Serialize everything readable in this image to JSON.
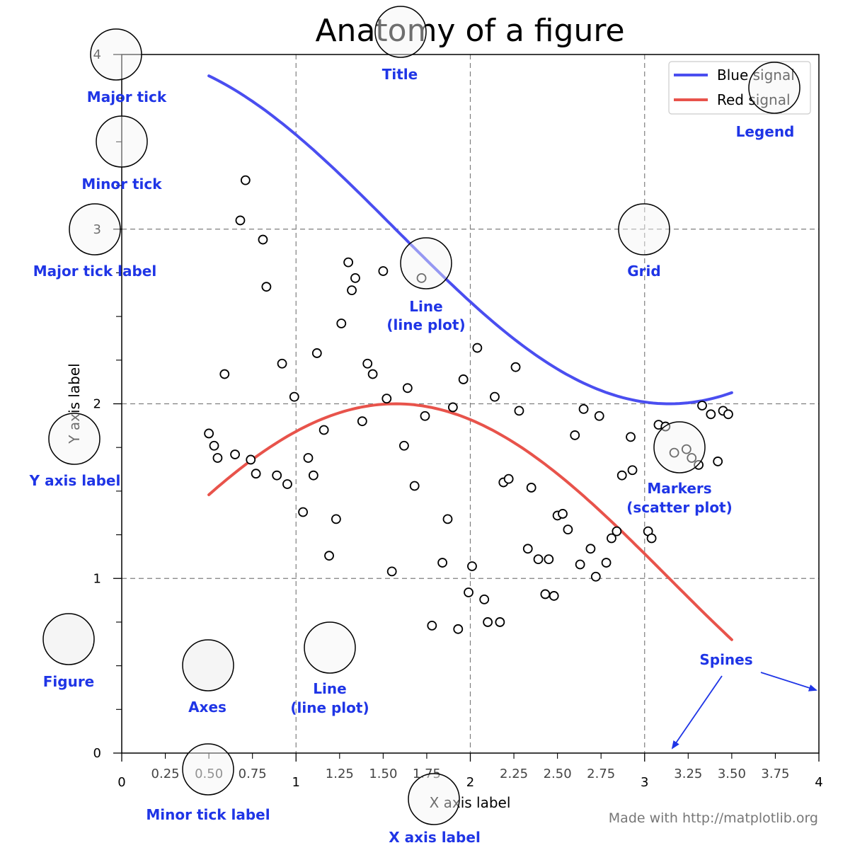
{
  "chart_data": {
    "type": "scatter",
    "title": "Anatomy of a figure",
    "xlabel": "X axis label",
    "ylabel": "Y axis label",
    "xlim": [
      0,
      4
    ],
    "ylim": [
      0,
      4
    ],
    "grid": true,
    "legend_position": "top-right",
    "x_major_ticks": [
      {
        "value": 0,
        "label": "0"
      },
      {
        "value": 1,
        "label": "1"
      },
      {
        "value": 2,
        "label": "2"
      },
      {
        "value": 3,
        "label": "3"
      },
      {
        "value": 4,
        "label": "4"
      }
    ],
    "x_minor_ticks": [
      {
        "value": 0.25,
        "label": "0.25"
      },
      {
        "value": 0.5,
        "label": "0.50"
      },
      {
        "value": 0.75,
        "label": "0.75"
      },
      {
        "value": 1.25,
        "label": "1.25"
      },
      {
        "value": 1.5,
        "label": "1.50"
      },
      {
        "value": 1.75,
        "label": "1.75"
      },
      {
        "value": 2.25,
        "label": "2.25"
      },
      {
        "value": 2.5,
        "label": "2.50"
      },
      {
        "value": 2.75,
        "label": "2.75"
      },
      {
        "value": 3.25,
        "label": "3.25"
      },
      {
        "value": 3.5,
        "label": "3.50"
      },
      {
        "value": 3.75,
        "label": "3.75"
      }
    ],
    "y_major_ticks": [
      {
        "value": 0,
        "label": "0"
      },
      {
        "value": 1,
        "label": "1"
      },
      {
        "value": 2,
        "label": "2"
      },
      {
        "value": 3,
        "label": "3"
      },
      {
        "value": 4,
        "label": "4"
      }
    ],
    "y_minor_ticks": [
      0.25,
      0.5,
      0.75,
      1.25,
      1.5,
      1.75,
      2.25,
      2.5,
      2.75,
      3.25,
      3.5,
      3.75
    ],
    "series": [
      {
        "name": "Blue signal",
        "kind": "line",
        "color": "#4a4ef0",
        "formula": "3 + cos(x)",
        "x_range": [
          0.5,
          3.5
        ]
      },
      {
        "name": "Red signal",
        "kind": "line",
        "color": "#e8534b",
        "formula": "1 + sin(x)",
        "x_range": [
          0.5,
          3.5
        ]
      },
      {
        "kind": "scatter",
        "marker": "open-circle",
        "points": [
          [
            0.71,
            3.28
          ],
          [
            0.68,
            3.05
          ],
          [
            0.81,
            2.94
          ],
          [
            0.83,
            2.67
          ],
          [
            0.59,
            2.17
          ],
          [
            0.5,
            1.83
          ],
          [
            0.53,
            1.76
          ],
          [
            0.55,
            1.69
          ],
          [
            0.65,
            1.71
          ],
          [
            0.74,
            1.68
          ],
          [
            0.77,
            1.6
          ],
          [
            0.89,
            1.59
          ],
          [
            0.95,
            1.54
          ],
          [
            0.92,
            2.23
          ],
          [
            0.99,
            2.04
          ],
          [
            1.04,
            1.38
          ],
          [
            1.07,
            1.69
          ],
          [
            1.1,
            1.59
          ],
          [
            1.12,
            2.29
          ],
          [
            1.16,
            1.85
          ],
          [
            1.19,
            1.13
          ],
          [
            1.23,
            1.34
          ],
          [
            1.26,
            2.46
          ],
          [
            1.3,
            2.81
          ],
          [
            1.34,
            2.72
          ],
          [
            1.32,
            2.65
          ],
          [
            1.38,
            1.9
          ],
          [
            1.41,
            2.23
          ],
          [
            1.44,
            2.17
          ],
          [
            1.5,
            2.76
          ],
          [
            1.52,
            2.03
          ],
          [
            1.55,
            1.04
          ],
          [
            1.62,
            1.76
          ],
          [
            1.64,
            2.09
          ],
          [
            1.68,
            1.53
          ],
          [
            1.72,
            2.72
          ],
          [
            1.74,
            1.93
          ],
          [
            1.78,
            0.73
          ],
          [
            1.84,
            1.09
          ],
          [
            1.87,
            1.34
          ],
          [
            1.9,
            1.98
          ],
          [
            1.93,
            0.71
          ],
          [
            1.96,
            2.14
          ],
          [
            1.99,
            0.92
          ],
          [
            2.01,
            1.07
          ],
          [
            2.04,
            2.32
          ],
          [
            2.08,
            0.88
          ],
          [
            2.1,
            0.75
          ],
          [
            2.14,
            2.04
          ],
          [
            2.17,
            0.75
          ],
          [
            2.19,
            1.55
          ],
          [
            2.22,
            1.57
          ],
          [
            2.26,
            2.21
          ],
          [
            2.28,
            1.96
          ],
          [
            2.33,
            1.17
          ],
          [
            2.35,
            1.52
          ],
          [
            2.39,
            1.11
          ],
          [
            2.43,
            0.91
          ],
          [
            2.45,
            1.11
          ],
          [
            2.48,
            0.9
          ],
          [
            2.5,
            1.36
          ],
          [
            2.53,
            1.37
          ],
          [
            2.56,
            1.28
          ],
          [
            2.6,
            1.82
          ],
          [
            2.63,
            1.08
          ],
          [
            2.65,
            1.97
          ],
          [
            2.69,
            1.17
          ],
          [
            2.72,
            1.01
          ],
          [
            2.74,
            1.93
          ],
          [
            2.78,
            1.09
          ],
          [
            2.81,
            1.23
          ],
          [
            2.84,
            1.27
          ],
          [
            2.92,
            1.81
          ],
          [
            2.87,
            1.59
          ],
          [
            2.93,
            1.62
          ],
          [
            3.02,
            1.27
          ],
          [
            3.04,
            1.23
          ],
          [
            3.08,
            1.88
          ],
          [
            3.12,
            1.87
          ],
          [
            3.17,
            1.72
          ],
          [
            3.24,
            1.74
          ],
          [
            3.27,
            1.69
          ],
          [
            3.31,
            1.65
          ],
          [
            3.33,
            1.99
          ],
          [
            3.38,
            1.94
          ],
          [
            3.42,
            1.67
          ],
          [
            3.45,
            1.96
          ],
          [
            3.48,
            1.94
          ]
        ]
      }
    ]
  },
  "annotations": [
    {
      "id": "major-tick",
      "label": "Major tick"
    },
    {
      "id": "minor-tick",
      "label": "Minor tick"
    },
    {
      "id": "major-tick-label",
      "label": "Major tick label"
    },
    {
      "id": "title",
      "label": "Title"
    },
    {
      "id": "legend",
      "label": "Legend"
    },
    {
      "id": "grid",
      "label": "Grid"
    },
    {
      "id": "line-upper",
      "label": "Line",
      "label2": "(line plot)"
    },
    {
      "id": "markers",
      "label": "Markers",
      "label2": "(scatter plot)"
    },
    {
      "id": "y-axis-label",
      "label": "Y axis label"
    },
    {
      "id": "figure",
      "label": "Figure"
    },
    {
      "id": "axes",
      "label": "Axes"
    },
    {
      "id": "line-lower",
      "label": "Line",
      "label2": "(line plot)"
    },
    {
      "id": "spines",
      "label": "Spines"
    },
    {
      "id": "minor-tick-label",
      "label": "Minor tick label"
    },
    {
      "id": "x-axis-label",
      "label": "X axis label"
    }
  ],
  "credit": "Made with http://matplotlib.org",
  "colors": {
    "annotation_text": "#1f35e6",
    "highlight_fill": "#f5f5f5",
    "grid": "#7f7f7f"
  }
}
